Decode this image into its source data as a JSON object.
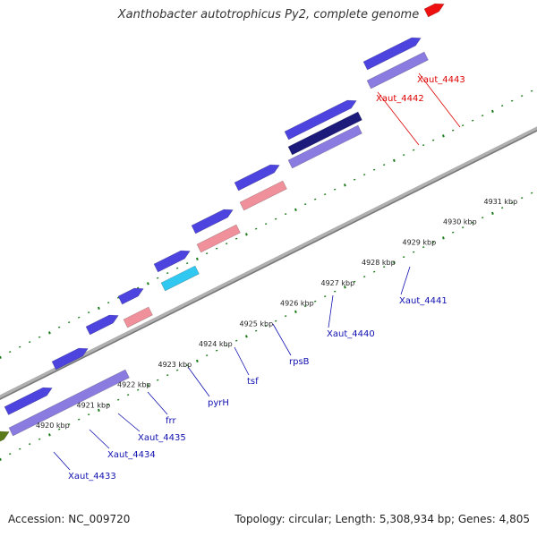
{
  "title": "Xanthobacter autotrophicus Py2, complete genome",
  "footer": {
    "accession": "Accession: NC_009720",
    "summary": "Topology: circular; Length: 5,308,934 bp; Genes: 4,805"
  },
  "colors": {
    "blue": "#4d44e0",
    "lavender": "#8a7be0",
    "navy": "#1c1a7a",
    "salmon": "#f0909a",
    "cyan": "#30c8f0",
    "red": "#ee1010",
    "orange": "#f08a00",
    "olive": "#5a7a1a",
    "label_blue": "#1010b0",
    "label_red": "#dd0000",
    "tick_green": "#1a7a1a",
    "backbone": "#999999"
  },
  "kbp_labels": [
    "4920 kbp",
    "4921 kbp",
    "4922 kbp",
    "4923 kbp",
    "4924 kbp",
    "4925 kbp",
    "4926 kbp",
    "4927 kbp",
    "4928 kbp",
    "4929 kbp",
    "4930 kbp",
    "4931 kbp"
  ],
  "gene_labels": [
    {
      "text": "Xaut_4433",
      "color": "blue"
    },
    {
      "text": "Xaut_4434",
      "color": "blue"
    },
    {
      "text": "Xaut_4435",
      "color": "blue"
    },
    {
      "text": "frr",
      "color": "blue"
    },
    {
      "text": "pyrH",
      "color": "blue"
    },
    {
      "text": "tsf",
      "color": "blue"
    },
    {
      "text": "rpsB",
      "color": "blue"
    },
    {
      "text": "Xaut_4440",
      "color": "blue"
    },
    {
      "text": "Xaut_4441",
      "color": "blue"
    },
    {
      "text": "Xaut_4442",
      "color": "red"
    },
    {
      "text": "Xaut_4443",
      "color": "red"
    }
  ]
}
